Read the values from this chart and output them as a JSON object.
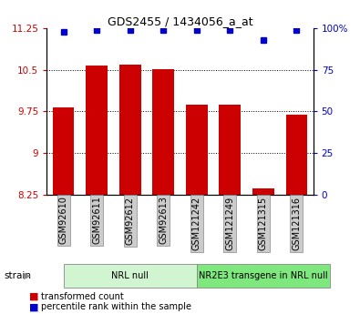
{
  "title": "GDS2455 / 1434056_a_at",
  "samples": [
    "GSM92610",
    "GSM92611",
    "GSM92612",
    "GSM92613",
    "GSM121242",
    "GSM121249",
    "GSM121315",
    "GSM121316"
  ],
  "bar_values": [
    9.82,
    10.57,
    10.59,
    10.52,
    9.88,
    9.87,
    8.37,
    9.7
  ],
  "percentile_values": [
    98,
    99,
    99,
    99,
    99,
    99,
    93,
    99
  ],
  "ylim_left": [
    8.25,
    11.25
  ],
  "ylim_right": [
    0,
    100
  ],
  "yticks_left": [
    8.25,
    9.0,
    9.75,
    10.5,
    11.25
  ],
  "ytick_labels_left": [
    "8.25",
    "9",
    "9.75",
    "10.5",
    "11.25"
  ],
  "yticks_right": [
    0,
    25,
    50,
    75,
    100
  ],
  "ytick_labels_right": [
    "0",
    "25",
    "50",
    "75",
    "100%"
  ],
  "groups": [
    {
      "label": "NRL null",
      "start": 0,
      "end": 4,
      "color": "#d0f5d0"
    },
    {
      "label": "NR2E3 transgene in NRL null",
      "start": 4,
      "end": 8,
      "color": "#7ee87e"
    }
  ],
  "bar_color": "#cc0000",
  "dot_color": "#0000cc",
  "bar_width": 0.65,
  "left_tick_color": "#cc0000",
  "right_tick_color": "#0000cc",
  "legend_bar_label": "transformed count",
  "legend_dot_label": "percentile rank within the sample",
  "strain_label": "strain",
  "background_color": "#ffffff",
  "xticklabel_bg": "#cccccc",
  "title_fontsize": 9,
  "tick_fontsize": 7.5,
  "label_fontsize": 7
}
